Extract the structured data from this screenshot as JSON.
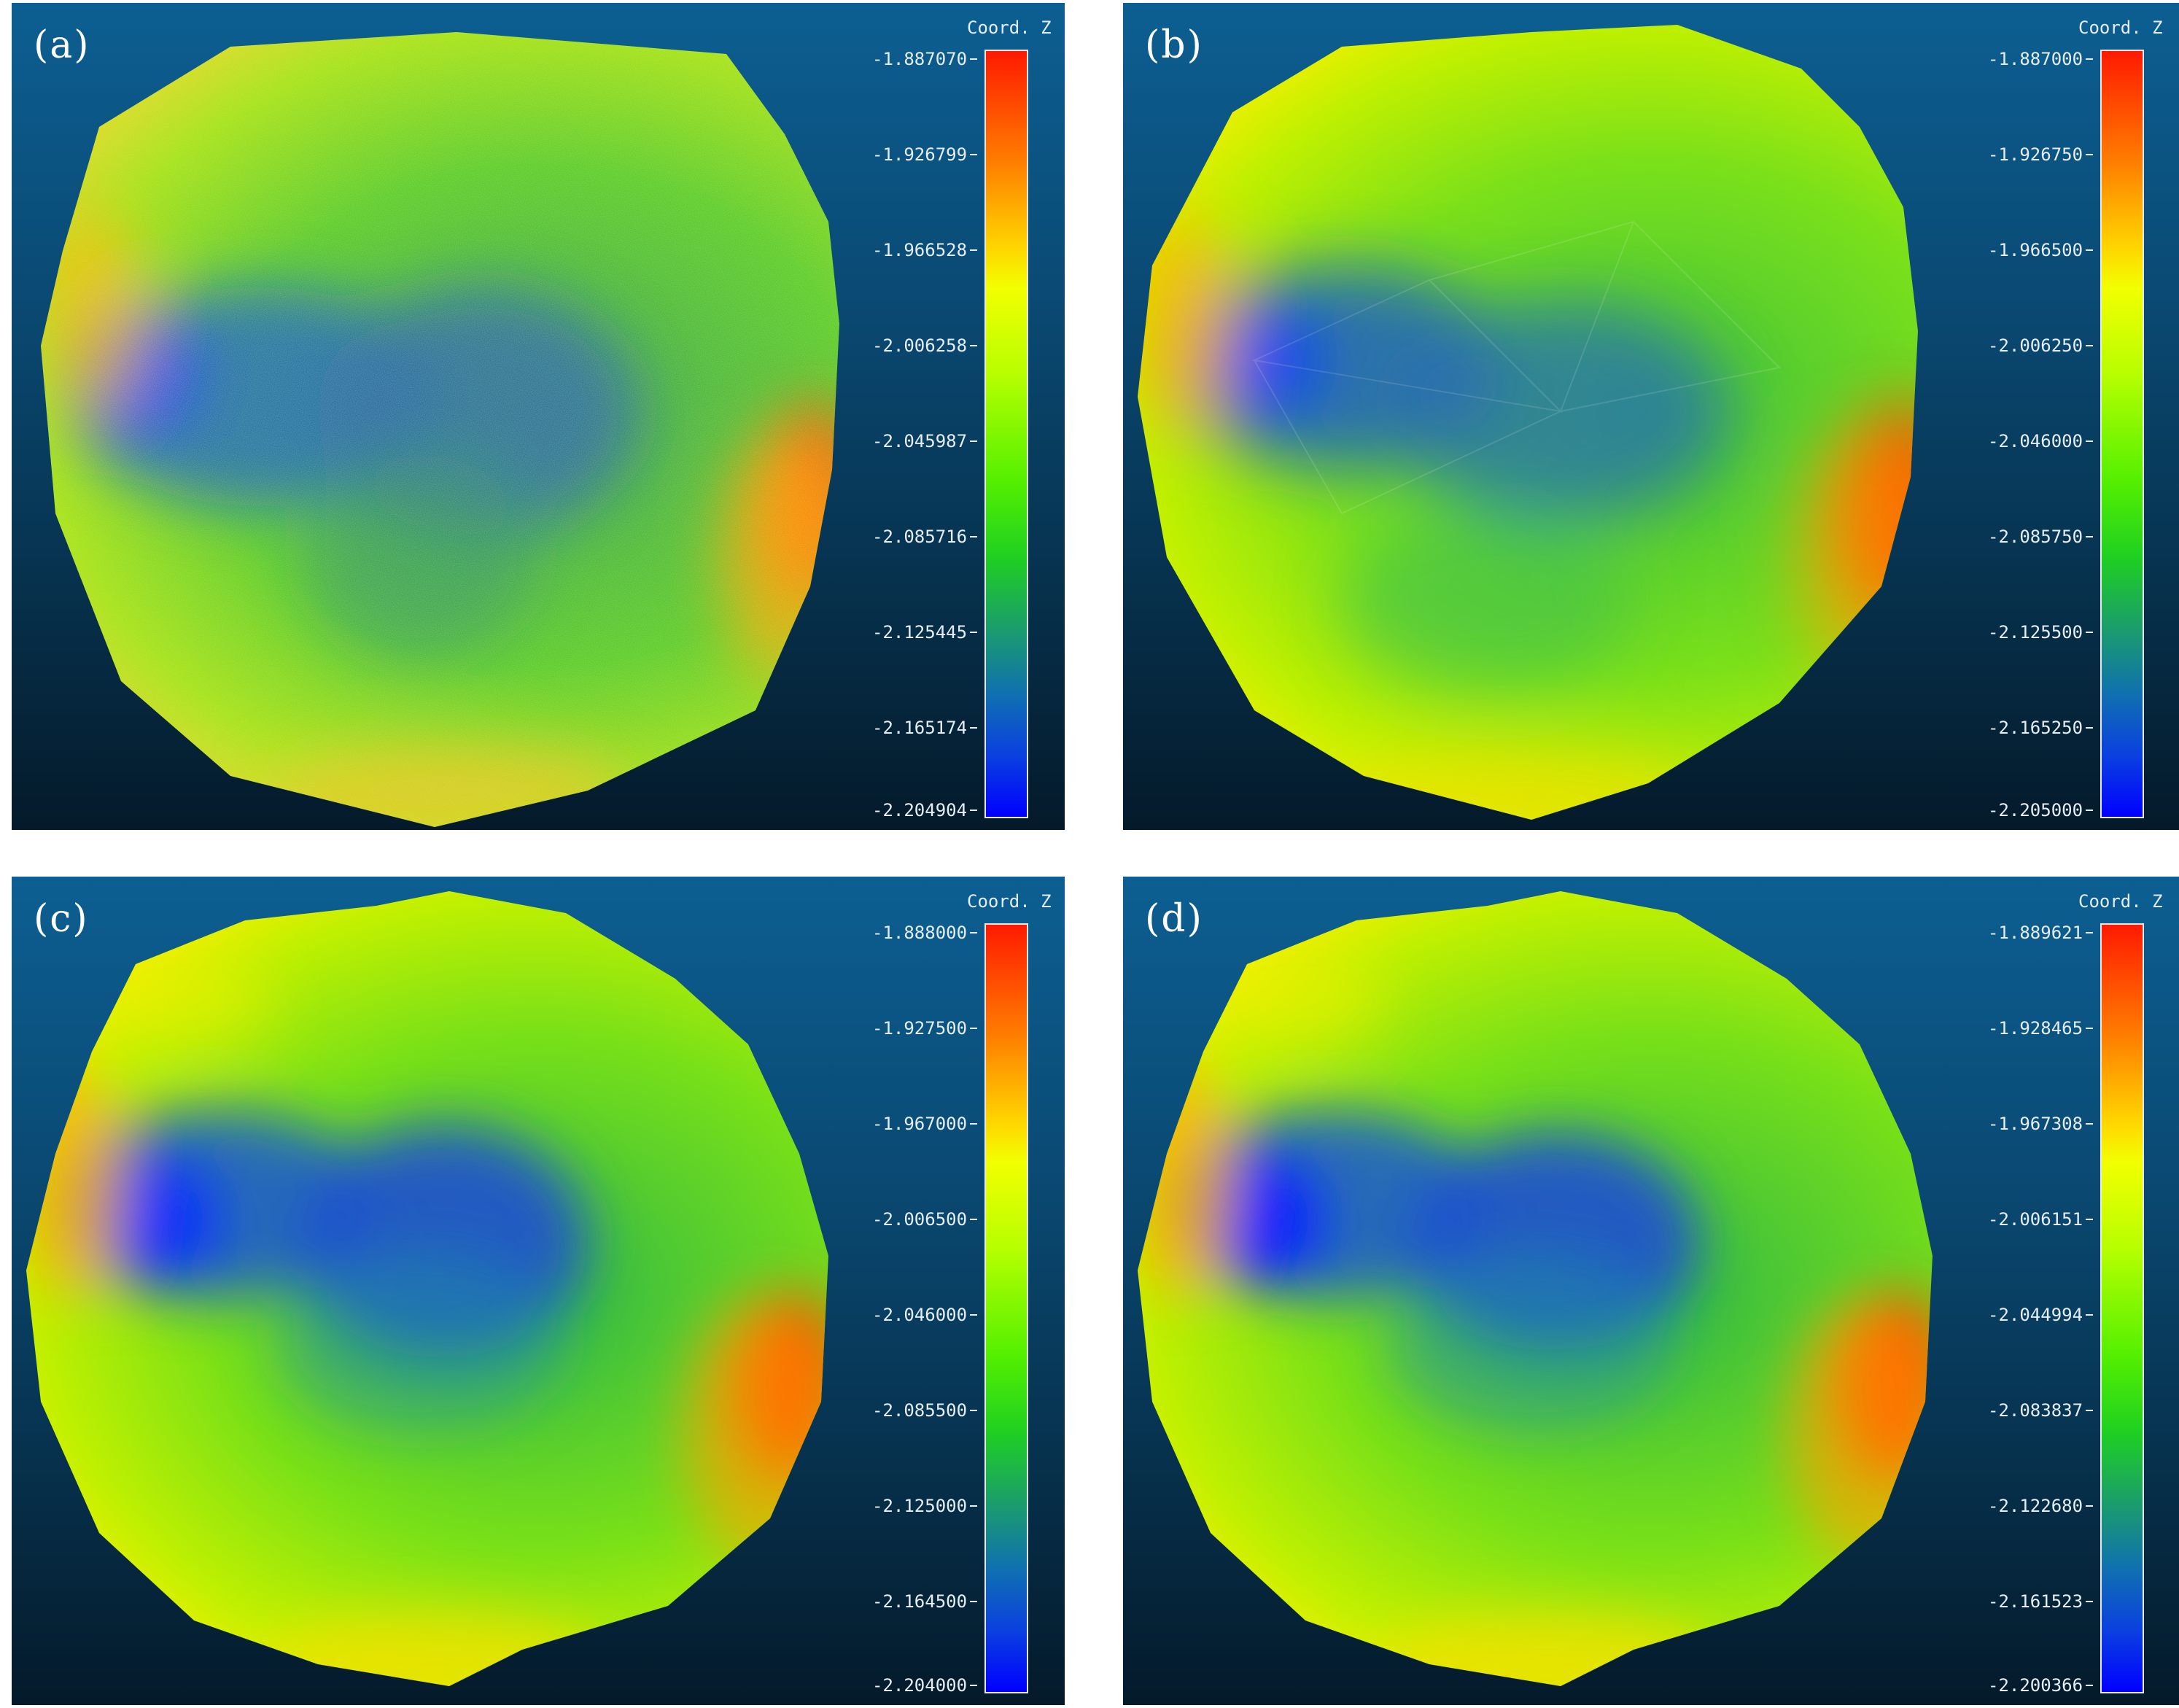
{
  "panels": [
    {
      "label": "(a)",
      "colorbar_title": "Coord. Z",
      "ticks": [
        "-1.887070",
        "-1.926799",
        "-1.966528",
        "-2.006258",
        "-2.045987",
        "-2.085716",
        "-2.125445",
        "-2.165174",
        "-2.204904"
      ]
    },
    {
      "label": "(b)",
      "colorbar_title": "Coord. Z",
      "ticks": [
        "-1.887000",
        "-1.926750",
        "-1.966500",
        "-2.006250",
        "-2.046000",
        "-2.085750",
        "-2.125500",
        "-2.165250",
        "-2.205000"
      ]
    },
    {
      "label": "(c)",
      "colorbar_title": "Coord. Z",
      "ticks": [
        "-1.888000",
        "-1.927500",
        "-1.967000",
        "-2.006500",
        "-2.046000",
        "-2.085500",
        "-2.125000",
        "-2.164500",
        "-2.204000"
      ]
    },
    {
      "label": "(d)",
      "colorbar_title": "Coord. Z",
      "ticks": [
        "-1.889621",
        "-1.928465",
        "-1.967308",
        "-2.006151",
        "-2.044994",
        "-2.083837",
        "-2.122680",
        "-2.161523",
        "-2.200366"
      ]
    }
  ],
  "colors": {
    "background_top": "#0c5f92",
    "background_bottom": "#041a2a",
    "high": "#ff1a00",
    "mid": "#b8ff00",
    "low": "#0000ff"
  }
}
